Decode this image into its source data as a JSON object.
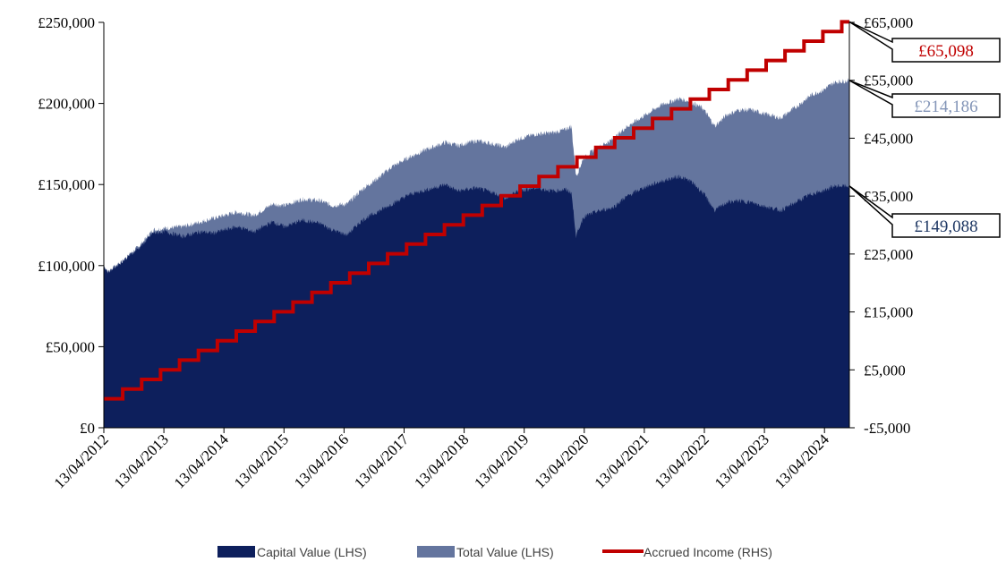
{
  "chart_data": {
    "type": "area",
    "x_ticks": [
      "13/04/2012",
      "13/04/2013",
      "13/04/2014",
      "13/04/2015",
      "13/04/2016",
      "13/04/2017",
      "13/04/2018",
      "13/04/2019",
      "13/04/2020",
      "13/04/2021",
      "13/04/2022",
      "13/04/2023",
      "13/04/2024"
    ],
    "left_axis": {
      "ylim": [
        0,
        250000
      ],
      "ticks": [
        "£0",
        "£50,000",
        "£100,000",
        "£150,000",
        "£200,000",
        "£250,000"
      ],
      "tick_values": [
        0,
        50000,
        100000,
        150000,
        200000,
        250000
      ]
    },
    "right_axis": {
      "ylim": [
        -5000,
        65000
      ],
      "ticks": [
        "-£5,000",
        "£5,000",
        "£15,000",
        "£25,000",
        "£35,000",
        "£45,000",
        "£55,000",
        "£65,000"
      ],
      "tick_values": [
        -5000,
        5000,
        15000,
        25000,
        35000,
        45000,
        55000,
        65000
      ]
    },
    "x_start": 2012.28,
    "x_end": 2024.75,
    "series": [
      {
        "name": "Capital Value (LHS)",
        "axis": "left",
        "color": "#0d1f5c",
        "points": [
          [
            2012.28,
            100000
          ],
          [
            2012.35,
            96000
          ],
          [
            2012.6,
            103000
          ],
          [
            2012.9,
            112000
          ],
          [
            2013.1,
            120000
          ],
          [
            2013.3,
            121000
          ],
          [
            2013.6,
            118000
          ],
          [
            2013.9,
            121000
          ],
          [
            2014.1,
            120000
          ],
          [
            2014.5,
            124000
          ],
          [
            2014.8,
            121000
          ],
          [
            2015.1,
            127000
          ],
          [
            2015.3,
            124000
          ],
          [
            2015.6,
            128000
          ],
          [
            2015.9,
            126000
          ],
          [
            2016.1,
            122000
          ],
          [
            2016.35,
            119000
          ],
          [
            2016.6,
            128000
          ],
          [
            2016.9,
            134000
          ],
          [
            2017.1,
            138000
          ],
          [
            2017.4,
            144000
          ],
          [
            2017.7,
            147000
          ],
          [
            2018.0,
            150000
          ],
          [
            2018.2,
            146000
          ],
          [
            2018.5,
            148000
          ],
          [
            2018.8,
            145000
          ],
          [
            2019.0,
            141000
          ],
          [
            2019.2,
            146000
          ],
          [
            2019.5,
            148000
          ],
          [
            2019.8,
            146000
          ],
          [
            2020.0,
            147000
          ],
          [
            2020.1,
            145000
          ],
          [
            2020.18,
            118000
          ],
          [
            2020.3,
            130000
          ],
          [
            2020.5,
            133000
          ],
          [
            2020.8,
            136000
          ],
          [
            2021.0,
            142000
          ],
          [
            2021.3,
            148000
          ],
          [
            2021.6,
            152000
          ],
          [
            2021.9,
            155000
          ],
          [
            2022.1,
            152000
          ],
          [
            2022.3,
            145000
          ],
          [
            2022.5,
            134000
          ],
          [
            2022.7,
            139000
          ],
          [
            2022.9,
            140000
          ],
          [
            2023.1,
            139000
          ],
          [
            2023.3,
            137000
          ],
          [
            2023.6,
            134000
          ],
          [
            2023.9,
            140000
          ],
          [
            2024.1,
            144000
          ],
          [
            2024.3,
            146000
          ],
          [
            2024.5,
            149000
          ],
          [
            2024.75,
            149088
          ]
        ]
      },
      {
        "name": "Total Value (LHS)",
        "axis": "left",
        "color": "#64759e",
        "points": [
          [
            2012.28,
            100000
          ],
          [
            2012.35,
            96000
          ],
          [
            2012.6,
            103000
          ],
          [
            2012.9,
            113000
          ],
          [
            2013.1,
            122000
          ],
          [
            2013.3,
            123000
          ],
          [
            2013.6,
            124000
          ],
          [
            2013.9,
            127000
          ],
          [
            2014.1,
            129000
          ],
          [
            2014.5,
            133000
          ],
          [
            2014.8,
            131000
          ],
          [
            2015.1,
            138000
          ],
          [
            2015.3,
            137000
          ],
          [
            2015.6,
            141000
          ],
          [
            2015.9,
            140000
          ],
          [
            2016.1,
            137000
          ],
          [
            2016.35,
            138000
          ],
          [
            2016.6,
            147000
          ],
          [
            2016.9,
            155000
          ],
          [
            2017.1,
            161000
          ],
          [
            2017.4,
            167000
          ],
          [
            2017.7,
            172000
          ],
          [
            2018.0,
            176000
          ],
          [
            2018.2,
            174000
          ],
          [
            2018.5,
            177000
          ],
          [
            2018.8,
            175000
          ],
          [
            2019.0,
            173000
          ],
          [
            2019.2,
            178000
          ],
          [
            2019.5,
            181000
          ],
          [
            2019.8,
            182000
          ],
          [
            2020.0,
            184000
          ],
          [
            2020.1,
            186000
          ],
          [
            2020.18,
            155000
          ],
          [
            2020.3,
            166000
          ],
          [
            2020.5,
            172000
          ],
          [
            2020.8,
            178000
          ],
          [
            2021.0,
            185000
          ],
          [
            2021.3,
            192000
          ],
          [
            2021.6,
            199000
          ],
          [
            2021.9,
            203000
          ],
          [
            2022.1,
            201000
          ],
          [
            2022.3,
            197000
          ],
          [
            2022.5,
            186000
          ],
          [
            2022.7,
            193000
          ],
          [
            2022.9,
            196000
          ],
          [
            2023.1,
            196000
          ],
          [
            2023.3,
            194000
          ],
          [
            2023.6,
            191000
          ],
          [
            2023.9,
            199000
          ],
          [
            2024.1,
            205000
          ],
          [
            2024.3,
            208000
          ],
          [
            2024.5,
            213000
          ],
          [
            2024.75,
            214186
          ]
        ]
      },
      {
        "name": "Accrued Income (RHS)",
        "axis": "right",
        "color": "#c00000",
        "type": "step",
        "start": 0,
        "end": 65098,
        "steps": 39
      }
    ],
    "callouts": [
      {
        "text": "£65,098",
        "color": "#c00000",
        "series": "Accrued Income (RHS)"
      },
      {
        "text": "£214,186",
        "color": "#8496b8",
        "series": "Total Value (LHS)"
      },
      {
        "text": "£149,088",
        "color": "#1f3864",
        "series": "Capital Value (LHS)"
      }
    ],
    "legend": {
      "position": "bottom"
    },
    "grid": false
  }
}
